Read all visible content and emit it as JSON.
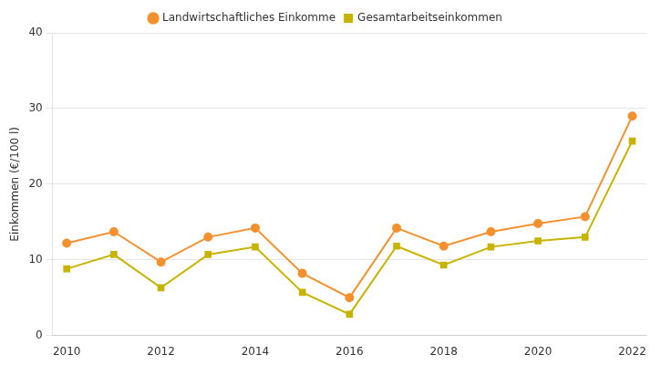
{
  "chart_data": {
    "type": "line",
    "ylabel": "Einkommen (€/100 l)",
    "x": [
      2010,
      2011,
      2012,
      2013,
      2014,
      2015,
      2016,
      2017,
      2018,
      2019,
      2020,
      2021,
      2022
    ],
    "series": [
      {
        "name": "Landwirtschaftliches Einkomme",
        "color": "#F4912E",
        "marker": "circle",
        "values": [
          12.2,
          13.7,
          9.7,
          13.0,
          14.2,
          8.2,
          5.0,
          14.2,
          11.8,
          13.7,
          14.8,
          15.7,
          29.0
        ]
      },
      {
        "name": "Gesamtarbeitseinkommen",
        "color": "#C8B400",
        "marker": "square",
        "values": [
          8.8,
          10.7,
          6.3,
          10.7,
          11.7,
          5.7,
          2.8,
          11.8,
          9.3,
          11.7,
          12.5,
          13.0,
          25.7
        ]
      }
    ],
    "xlim": [
      2009.7,
      2022.3
    ],
    "xticks": [
      2010,
      2012,
      2014,
      2016,
      2018,
      2020,
      2022
    ],
    "ylim": [
      0,
      40
    ],
    "yticks": [
      0,
      10,
      20,
      30,
      40
    ],
    "grid": "y",
    "legend": "top"
  }
}
